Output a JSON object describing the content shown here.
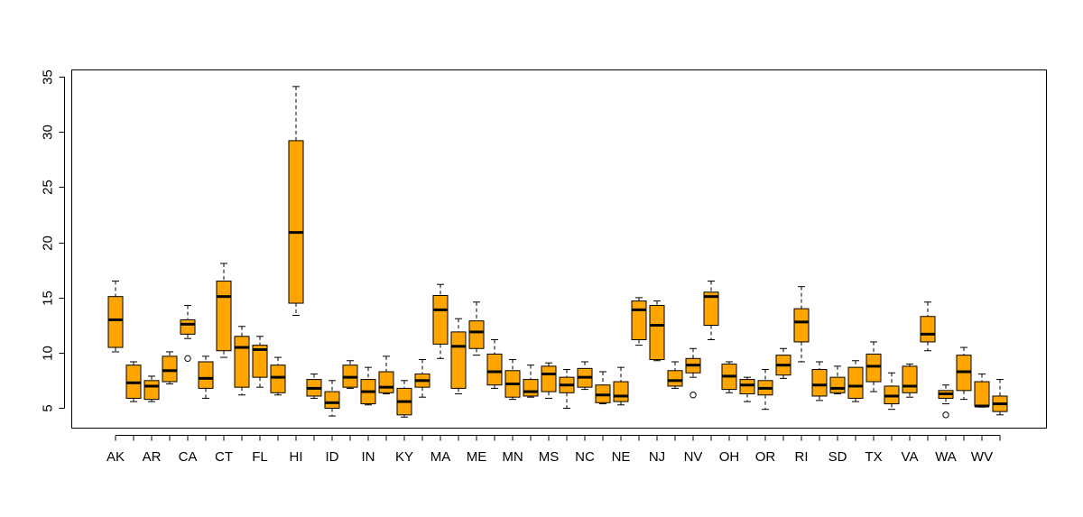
{
  "chart_data": {
    "type": "boxplot",
    "title": "",
    "xlabel": "",
    "ylabel": "",
    "ylim": [
      3.2,
      35.6
    ],
    "y_ticks": [
      5,
      10,
      15,
      20,
      25,
      30,
      35
    ],
    "x_tick_labels_shown": [
      "AK",
      "AR",
      "CA",
      "CT",
      "FL",
      "HI",
      "ID",
      "IN",
      "KY",
      "MA",
      "ME",
      "MN",
      "MS",
      "NC",
      "NE",
      "NJ",
      "NV",
      "OH",
      "OR",
      "RI",
      "SD",
      "TX",
      "VA",
      "WA",
      "WV"
    ],
    "box_fill": "#FFA500",
    "boxes": [
      {
        "label": "AK",
        "low": 10.1,
        "q1": 10.5,
        "median": 13.0,
        "q3": 15.1,
        "high": 16.5,
        "outliers": []
      },
      {
        "label": "",
        "low": 5.6,
        "q1": 5.9,
        "median": 7.3,
        "q3": 8.9,
        "high": 9.2,
        "outliers": []
      },
      {
        "label": "AR",
        "low": 5.6,
        "q1": 5.8,
        "median": 7.0,
        "q3": 7.5,
        "high": 7.9,
        "outliers": []
      },
      {
        "label": "",
        "low": 7.2,
        "q1": 7.4,
        "median": 8.4,
        "q3": 9.7,
        "high": 10.1,
        "outliers": []
      },
      {
        "label": "CA",
        "low": 11.3,
        "q1": 11.7,
        "median": 12.6,
        "q3": 13.0,
        "high": 14.3,
        "outliers": [
          9.5
        ]
      },
      {
        "label": "",
        "low": 5.9,
        "q1": 6.8,
        "median": 7.7,
        "q3": 9.2,
        "high": 9.7,
        "outliers": []
      },
      {
        "label": "CT",
        "low": 9.6,
        "q1": 10.2,
        "median": 15.1,
        "q3": 16.5,
        "high": 18.1,
        "outliers": []
      },
      {
        "label": "",
        "low": 6.2,
        "q1": 6.9,
        "median": 10.5,
        "q3": 11.5,
        "high": 12.4,
        "outliers": []
      },
      {
        "label": "FL",
        "low": 6.9,
        "q1": 7.8,
        "median": 10.3,
        "q3": 10.7,
        "high": 11.5,
        "outliers": []
      },
      {
        "label": "",
        "low": 6.2,
        "q1": 6.4,
        "median": 7.8,
        "q3": 8.9,
        "high": 9.6,
        "outliers": []
      },
      {
        "label": "HI",
        "low": 13.4,
        "q1": 14.5,
        "median": 20.9,
        "q3": 29.2,
        "high": 34.1,
        "outliers": []
      },
      {
        "label": "",
        "low": 5.9,
        "q1": 6.1,
        "median": 6.8,
        "q3": 7.6,
        "high": 8.1,
        "outliers": []
      },
      {
        "label": "ID",
        "low": 4.3,
        "q1": 5.0,
        "median": 5.5,
        "q3": 6.5,
        "high": 7.5,
        "outliers": []
      },
      {
        "label": "",
        "low": 6.8,
        "q1": 6.9,
        "median": 7.8,
        "q3": 8.9,
        "high": 9.3,
        "outliers": []
      },
      {
        "label": "IN",
        "low": 5.3,
        "q1": 5.4,
        "median": 6.5,
        "q3": 7.6,
        "high": 8.7,
        "outliers": []
      },
      {
        "label": "",
        "low": 6.3,
        "q1": 6.4,
        "median": 6.9,
        "q3": 8.3,
        "high": 9.7,
        "outliers": []
      },
      {
        "label": "KY",
        "low": 4.2,
        "q1": 4.4,
        "median": 5.6,
        "q3": 6.8,
        "high": 7.5,
        "outliers": []
      },
      {
        "label": "",
        "low": 6.0,
        "q1": 6.9,
        "median": 7.5,
        "q3": 8.1,
        "high": 9.4,
        "outliers": []
      },
      {
        "label": "MA",
        "low": 9.5,
        "q1": 10.8,
        "median": 13.9,
        "q3": 15.2,
        "high": 16.2,
        "outliers": []
      },
      {
        "label": "",
        "low": 6.3,
        "q1": 6.8,
        "median": 10.6,
        "q3": 11.9,
        "high": 13.1,
        "outliers": []
      },
      {
        "label": "ME",
        "low": 9.8,
        "q1": 10.4,
        "median": 11.9,
        "q3": 12.9,
        "high": 14.6,
        "outliers": []
      },
      {
        "label": "",
        "low": 6.8,
        "q1": 7.1,
        "median": 8.3,
        "q3": 9.9,
        "high": 11.2,
        "outliers": []
      },
      {
        "label": "MN",
        "low": 5.8,
        "q1": 6.0,
        "median": 7.2,
        "q3": 8.4,
        "high": 9.4,
        "outliers": []
      },
      {
        "label": "",
        "low": 6.0,
        "q1": 6.1,
        "median": 6.5,
        "q3": 7.6,
        "high": 8.9,
        "outliers": []
      },
      {
        "label": "MS",
        "low": 5.9,
        "q1": 6.5,
        "median": 8.1,
        "q3": 8.8,
        "high": 9.1,
        "outliers": []
      },
      {
        "label": "",
        "low": 5.0,
        "q1": 6.4,
        "median": 7.1,
        "q3": 7.8,
        "high": 8.5,
        "outliers": []
      },
      {
        "label": "NC",
        "low": 6.7,
        "q1": 6.9,
        "median": 7.8,
        "q3": 8.6,
        "high": 9.2,
        "outliers": []
      },
      {
        "label": "",
        "low": 5.4,
        "q1": 5.5,
        "median": 6.2,
        "q3": 7.1,
        "high": 8.3,
        "outliers": []
      },
      {
        "label": "NE",
        "low": 5.3,
        "q1": 5.6,
        "median": 6.1,
        "q3": 7.4,
        "high": 8.7,
        "outliers": []
      },
      {
        "label": "",
        "low": 10.7,
        "q1": 11.2,
        "median": 13.9,
        "q3": 14.7,
        "high": 15.0,
        "outliers": []
      },
      {
        "label": "NJ",
        "low": 9.3,
        "q1": 9.4,
        "median": 12.5,
        "q3": 14.3,
        "high": 14.7,
        "outliers": []
      },
      {
        "label": "",
        "low": 6.8,
        "q1": 7.0,
        "median": 7.5,
        "q3": 8.4,
        "high": 9.2,
        "outliers": []
      },
      {
        "label": "NV",
        "low": 7.8,
        "q1": 8.2,
        "median": 8.9,
        "q3": 9.5,
        "high": 10.4,
        "outliers": [
          6.2
        ]
      },
      {
        "label": "",
        "low": 11.2,
        "q1": 12.5,
        "median": 15.1,
        "q3": 15.5,
        "high": 16.5,
        "outliers": []
      },
      {
        "label": "OH",
        "low": 6.4,
        "q1": 6.7,
        "median": 7.9,
        "q3": 9.0,
        "high": 9.2,
        "outliers": []
      },
      {
        "label": "",
        "low": 5.6,
        "q1": 6.3,
        "median": 7.1,
        "q3": 7.6,
        "high": 7.8,
        "outliers": []
      },
      {
        "label": "OR",
        "low": 4.9,
        "q1": 6.2,
        "median": 6.8,
        "q3": 7.5,
        "high": 8.5,
        "outliers": []
      },
      {
        "label": "",
        "low": 7.7,
        "q1": 8.0,
        "median": 8.9,
        "q3": 9.8,
        "high": 10.4,
        "outliers": []
      },
      {
        "label": "RI",
        "low": 9.2,
        "q1": 11.0,
        "median": 12.8,
        "q3": 14.0,
        "high": 16.0,
        "outliers": []
      },
      {
        "label": "",
        "low": 5.7,
        "q1": 6.1,
        "median": 7.1,
        "q3": 8.5,
        "high": 9.2,
        "outliers": []
      },
      {
        "label": "SD",
        "low": 6.3,
        "q1": 6.4,
        "median": 6.8,
        "q3": 7.8,
        "high": 8.8,
        "outliers": []
      },
      {
        "label": "",
        "low": 5.6,
        "q1": 5.9,
        "median": 7.0,
        "q3": 8.7,
        "high": 9.3,
        "outliers": []
      },
      {
        "label": "TX",
        "low": 6.5,
        "q1": 7.4,
        "median": 8.8,
        "q3": 9.9,
        "high": 11.0,
        "outliers": []
      },
      {
        "label": "",
        "low": 4.9,
        "q1": 5.4,
        "median": 6.1,
        "q3": 7.0,
        "high": 8.2,
        "outliers": []
      },
      {
        "label": "VA",
        "low": 6.0,
        "q1": 6.4,
        "median": 7.0,
        "q3": 8.8,
        "high": 9.0,
        "outliers": []
      },
      {
        "label": "",
        "low": 10.2,
        "q1": 11.0,
        "median": 11.7,
        "q3": 13.3,
        "high": 14.6,
        "outliers": []
      },
      {
        "label": "WA",
        "low": 5.4,
        "q1": 5.9,
        "median": 6.3,
        "q3": 6.6,
        "high": 7.1,
        "outliers": [
          4.4
        ]
      },
      {
        "label": "",
        "low": 5.8,
        "q1": 6.6,
        "median": 8.3,
        "q3": 9.8,
        "high": 10.5,
        "outliers": []
      },
      {
        "label": "WV",
        "low": 5.1,
        "q1": 5.2,
        "median": 5.2,
        "q3": 7.4,
        "high": 8.1,
        "outliers": []
      },
      {
        "label": "",
        "low": 4.4,
        "q1": 4.7,
        "median": 5.4,
        "q3": 6.1,
        "high": 7.6,
        "outliers": []
      }
    ]
  }
}
